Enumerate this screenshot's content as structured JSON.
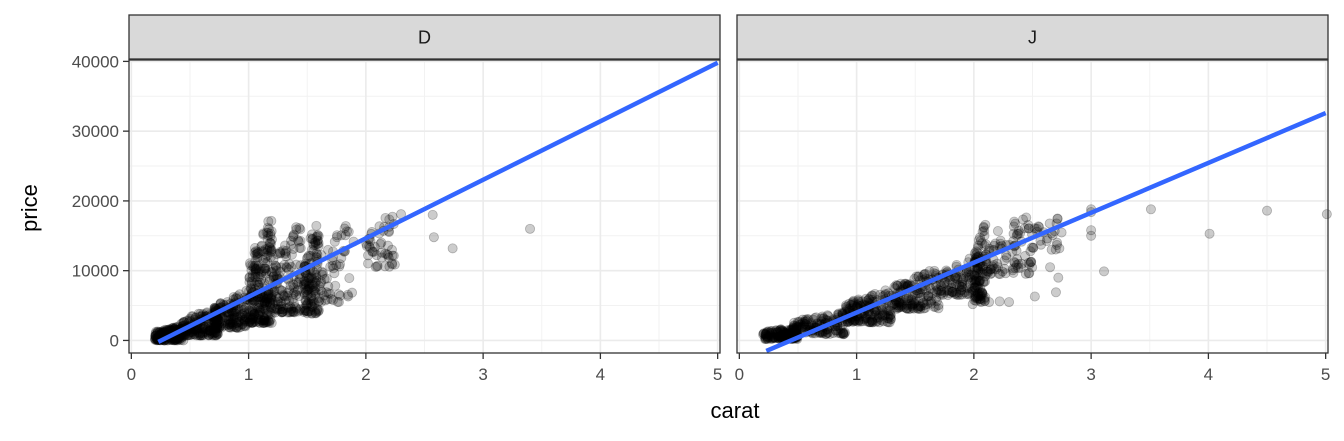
{
  "chart_data": {
    "type": "scatter",
    "xlabel": "carat",
    "ylabel": "price",
    "xlim": [
      -0.02,
      5.02
    ],
    "ylim": [
      -1800,
      40200
    ],
    "x_ticks": [
      0,
      1,
      2,
      3,
      4,
      5
    ],
    "y_ticks": [
      0,
      10000,
      20000,
      30000,
      40000
    ],
    "x_tick_labels": [
      "0",
      "1",
      "2",
      "3",
      "4",
      "5"
    ],
    "y_tick_labels": [
      "0",
      "10000",
      "20000",
      "30000",
      "40000"
    ],
    "grid": true,
    "point_color": "#000000",
    "point_opacity": 0.2,
    "line_color": "#3366FF",
    "panels": [
      {
        "label": "D",
        "trend_line": [
          [
            0.23,
            -200
          ],
          [
            5.0,
            39800
          ]
        ],
        "clusters": [
          {
            "x": [
              0.2,
              0.45
            ],
            "y": [
              0,
              2200
            ],
            "n": 200
          },
          {
            "x": [
              0.4,
              0.75
            ],
            "y": [
              700,
              4800
            ],
            "n": 170
          },
          {
            "x": [
              0.7,
              0.99
            ],
            "y": [
              1800,
              7500
            ],
            "n": 160
          },
          {
            "x": [
              1.0,
              1.2
            ],
            "y": [
              2500,
              18600
            ],
            "n": 240
          },
          {
            "x": [
              1.2,
              1.45
            ],
            "y": [
              4000,
              17500
            ],
            "n": 130
          },
          {
            "x": [
              1.47,
              1.6
            ],
            "y": [
              3800,
              18300
            ],
            "n": 130
          },
          {
            "x": [
              1.6,
              1.9
            ],
            "y": [
              5500,
              17800
            ],
            "n": 55
          },
          {
            "x": [
              2.0,
              2.25
            ],
            "y": [
              10500,
              18800
            ],
            "n": 45
          }
        ],
        "points": [
          [
            2.57,
            18000
          ],
          [
            2.58,
            14800
          ],
          [
            2.74,
            13200
          ],
          [
            3.4,
            16000
          ],
          [
            2.3,
            18100
          ],
          [
            2.1,
            10700
          ],
          [
            1.72,
            5800
          ],
          [
            1.5,
            3900
          ],
          [
            2.2,
            16300
          ]
        ]
      },
      {
        "label": "J",
        "trend_line": [
          [
            0.23,
            -1500
          ],
          [
            5.0,
            32600
          ]
        ],
        "clusters": [
          {
            "x": [
              0.2,
              0.5
            ],
            "y": [
              200,
              2000
            ],
            "n": 140
          },
          {
            "x": [
              0.45,
              0.9
            ],
            "y": [
              900,
              4200
            ],
            "n": 140
          },
          {
            "x": [
              0.9,
              1.3
            ],
            "y": [
              2600,
              7500
            ],
            "n": 170
          },
          {
            "x": [
              1.3,
              1.7
            ],
            "y": [
              4500,
              10500
            ],
            "n": 150
          },
          {
            "x": [
              1.7,
              1.99
            ],
            "y": [
              6500,
              12000
            ],
            "n": 90
          },
          {
            "x": [
              2.0,
              2.1
            ],
            "y": [
              5500,
              17800
            ],
            "n": 110
          },
          {
            "x": [
              2.1,
              2.5
            ],
            "y": [
              9500,
              18800
            ],
            "n": 90
          },
          {
            "x": [
              2.5,
              2.75
            ],
            "y": [
              13000,
              18500
            ],
            "n": 25
          }
        ],
        "points": [
          [
            3.0,
            18800
          ],
          [
            3.0,
            15800
          ],
          [
            3.0,
            15000
          ],
          [
            3.0,
            18400
          ],
          [
            3.11,
            9900
          ],
          [
            3.51,
            18800
          ],
          [
            4.01,
            15300
          ],
          [
            4.5,
            18600
          ],
          [
            5.01,
            18100
          ],
          [
            2.72,
            9000
          ],
          [
            2.52,
            6300
          ],
          [
            2.7,
            6900
          ],
          [
            2.65,
            10500
          ],
          [
            2.13,
            5500
          ],
          [
            2.22,
            5600
          ],
          [
            2.3,
            5500
          ],
          [
            1.99,
            5200
          ],
          [
            2.4,
            10400
          ]
        ]
      }
    ]
  }
}
